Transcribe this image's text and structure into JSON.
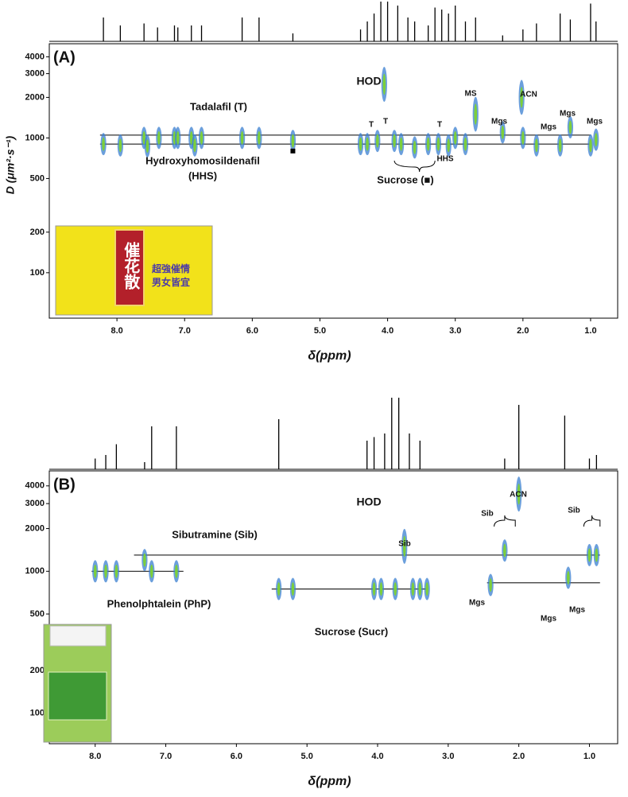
{
  "chart_data": [
    {
      "type": "dosy",
      "panel_label": "(A)",
      "x_label": "δ(ppm)",
      "y_label": "D (μm²·s⁻¹)",
      "log_y": true,
      "xlim": [
        9.0,
        0.6
      ],
      "ylim": [
        46,
        5000
      ],
      "xticks": [
        {
          "value": 8,
          "label": "8.0"
        },
        {
          "value": 7,
          "label": "7.0"
        },
        {
          "value": 6,
          "label": "6.0"
        },
        {
          "value": 5,
          "label": "5.0"
        },
        {
          "value": 4,
          "label": "4.0"
        },
        {
          "value": 3,
          "label": "3.0"
        },
        {
          "value": 2,
          "label": "2.0"
        },
        {
          "value": 1,
          "label": "1.0"
        }
      ],
      "yticks": [
        100,
        200,
        500,
        1000,
        2000,
        3000,
        4000
      ],
      "colors": [
        "#3a7fd0",
        "#7ccf3a"
      ],
      "x": [
        8.2,
        7.95,
        7.6,
        7.55,
        7.38,
        7.15,
        7.1,
        6.9,
        6.85,
        6.75,
        6.15,
        5.9,
        5.4,
        4.4,
        4.3,
        4.15,
        3.9,
        3.8,
        3.6,
        3.4,
        3.25,
        3.1,
        3.0,
        2.85,
        2.7,
        2.3,
        2.0,
        1.8,
        1.45,
        1.3,
        1.0,
        0.92,
        4.05,
        2.02
      ],
      "values": [
        900,
        880,
        1000,
        870,
        1000,
        1000,
        1000,
        1000,
        880,
        1000,
        1000,
        1000,
        950,
        900,
        900,
        950,
        950,
        900,
        850,
        900,
        900,
        880,
        1000,
        900,
        1500,
        1100,
        1000,
        880,
        880,
        1200,
        880,
        970,
        2500,
        2000
      ],
      "fit_lines": [
        {
          "y": 1050,
          "x": [
            8.25,
            1.0
          ]
        },
        {
          "y": 900,
          "x": [
            8.25,
            1.0
          ]
        }
      ],
      "spectrum": {
        "x": [
          8.2,
          7.95,
          7.6,
          7.4,
          7.15,
          7.1,
          6.9,
          6.75,
          6.15,
          5.9,
          5.4,
          4.4,
          4.3,
          4.2,
          4.1,
          4.0,
          3.85,
          3.7,
          3.6,
          3.4,
          3.3,
          3.2,
          3.1,
          3.0,
          2.85,
          2.7,
          2.3,
          2.0,
          1.8,
          1.45,
          1.3,
          1.0,
          0.92
        ],
        "values": [
          0.6,
          0.4,
          0.45,
          0.35,
          0.4,
          0.35,
          0.4,
          0.4,
          0.6,
          0.6,
          0.2,
          0.3,
          0.5,
          0.7,
          1,
          1,
          0.9,
          0.6,
          0.5,
          0.4,
          0.85,
          0.8,
          0.7,
          0.9,
          0.5,
          0.6,
          0.15,
          0.3,
          0.45,
          0.7,
          0.55,
          0.95,
          0.5
        ]
      },
      "annotations": [
        "HOD",
        "Tadalafil (T)",
        "Hydroxyhomosildenafil",
        "(HHS)",
        "Sucrose (■)",
        "T",
        "T",
        "T",
        "HHS",
        "MS",
        "ACN",
        "Mgs",
        "Mgs",
        "Mgs",
        "Mgs"
      ],
      "inset_text": [
        "催花散",
        "超強催情",
        "男女皆宜"
      ]
    },
    {
      "type": "dosy",
      "panel_label": "(B)",
      "x_label": "δ(ppm)",
      "log_y": true,
      "xlim": [
        8.65,
        0.6
      ],
      "ylim": [
        61,
        5100
      ],
      "xticks": [
        {
          "value": 8,
          "label": "8.0"
        },
        {
          "value": 7,
          "label": "7.0"
        },
        {
          "value": 6,
          "label": "6.0"
        },
        {
          "value": 5,
          "label": "5.0"
        },
        {
          "value": 4,
          "label": "4.0"
        },
        {
          "value": 3,
          "label": "3.0"
        },
        {
          "value": 2,
          "label": "2.0"
        },
        {
          "value": 1,
          "label": "1.0"
        }
      ],
      "yticks": [
        100,
        200,
        500,
        1000,
        2000,
        3000,
        4000
      ],
      "colors": [
        "#3a7fd0",
        "#7ccf3a"
      ],
      "x": [
        8.0,
        7.85,
        7.7,
        7.3,
        7.2,
        6.85,
        5.4,
        5.2,
        4.05,
        3.95,
        3.75,
        3.62,
        3.5,
        3.4,
        3.3,
        2.4,
        2.2,
        2.0,
        1.3,
        1.0,
        0.9
      ],
      "values": [
        1000,
        1000,
        1000,
        1200,
        1000,
        1000,
        750,
        750,
        750,
        750,
        750,
        1500,
        750,
        750,
        750,
        800,
        1400,
        3500,
        900,
        1300,
        1300
      ],
      "fit_lines": [
        {
          "y": 1300,
          "x": [
            7.45,
            0.85
          ]
        },
        {
          "y": 1000,
          "x": [
            8.05,
            6.75
          ]
        },
        {
          "y": 750,
          "x": [
            5.5,
            3.3
          ]
        },
        {
          "y": 830,
          "x": [
            2.45,
            0.85
          ]
        }
      ],
      "spectrum": {
        "x": [
          8.0,
          7.85,
          7.7,
          7.3,
          7.2,
          6.85,
          5.4,
          4.15,
          4.05,
          3.9,
          3.8,
          3.7,
          3.55,
          3.4,
          2.2,
          2.0,
          1.35,
          1.0,
          0.9
        ],
        "values": [
          0.15,
          0.2,
          0.35,
          0.1,
          0.6,
          0.6,
          0.7,
          0.4,
          0.45,
          0.5,
          1,
          1,
          0.5,
          0.4,
          0.15,
          0.9,
          0.75,
          0.15,
          0.2
        ]
      },
      "annotations": [
        "HOD",
        "Sibutramine (Sib)",
        "Phenolphtalein (PhP)",
        "Sucrose (Sucr)",
        "Sib",
        "Sib",
        "Sib",
        "ACN",
        "Mgs",
        "Mgs",
        "Mgs"
      ]
    }
  ]
}
